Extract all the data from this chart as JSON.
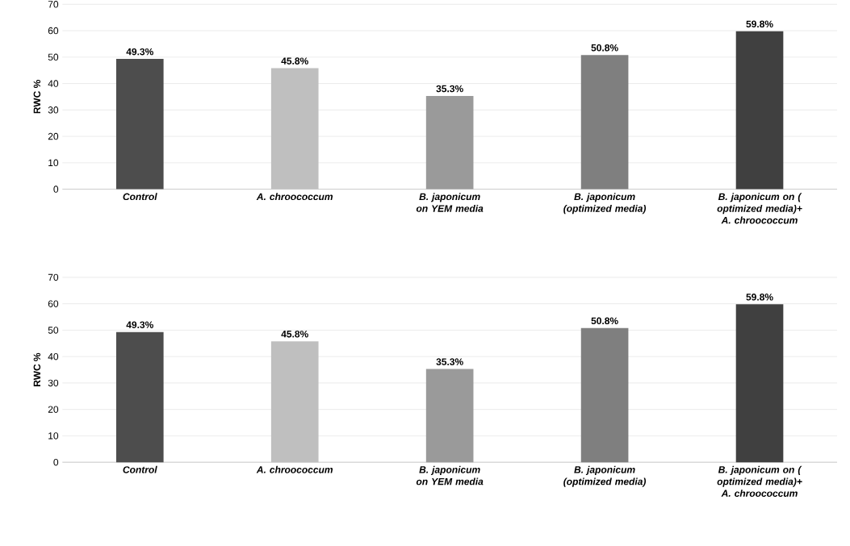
{
  "chart_data": [
    {
      "type": "bar",
      "ylabel": "RWC %",
      "categories": [
        "Control",
        "A. chroococcum",
        "B. japonicum on YEM media",
        "B. japonicum (optimized media)",
        "B. japonicum on ( optimized media)+ A. chroococcum"
      ],
      "values": [
        49.3,
        45.8,
        35.3,
        50.8,
        59.8
      ],
      "value_labels": [
        "49.3%",
        "45.8%",
        "35.3%",
        "50.8%",
        "59.8%"
      ],
      "colors": [
        "#4d4d4d",
        "#bfbfbf",
        "#9a9a9a",
        "#7f7f7f",
        "#404040"
      ],
      "ylim": [
        0,
        70
      ],
      "yticks": [
        0,
        10,
        20,
        30,
        40,
        50,
        60,
        70
      ],
      "grid": "y"
    },
    {
      "type": "bar",
      "ylabel": "RWC %",
      "categories": [
        "Control",
        "A. chroococcum",
        "B. japonicum on YEM media",
        "B. japonicum (optimized media)",
        "B. japonicum on ( optimized media)+ A. chroococcum"
      ],
      "values": [
        49.3,
        45.8,
        35.3,
        50.8,
        59.8
      ],
      "value_labels": [
        "49.3%",
        "45.8%",
        "35.3%",
        "50.8%",
        "59.8%"
      ],
      "colors": [
        "#4d4d4d",
        "#bfbfbf",
        "#9a9a9a",
        "#7f7f7f",
        "#404040"
      ],
      "ylim": [
        0,
        70
      ],
      "yticks": [
        0,
        10,
        20,
        30,
        40,
        50,
        60,
        70
      ],
      "grid": "y"
    }
  ]
}
